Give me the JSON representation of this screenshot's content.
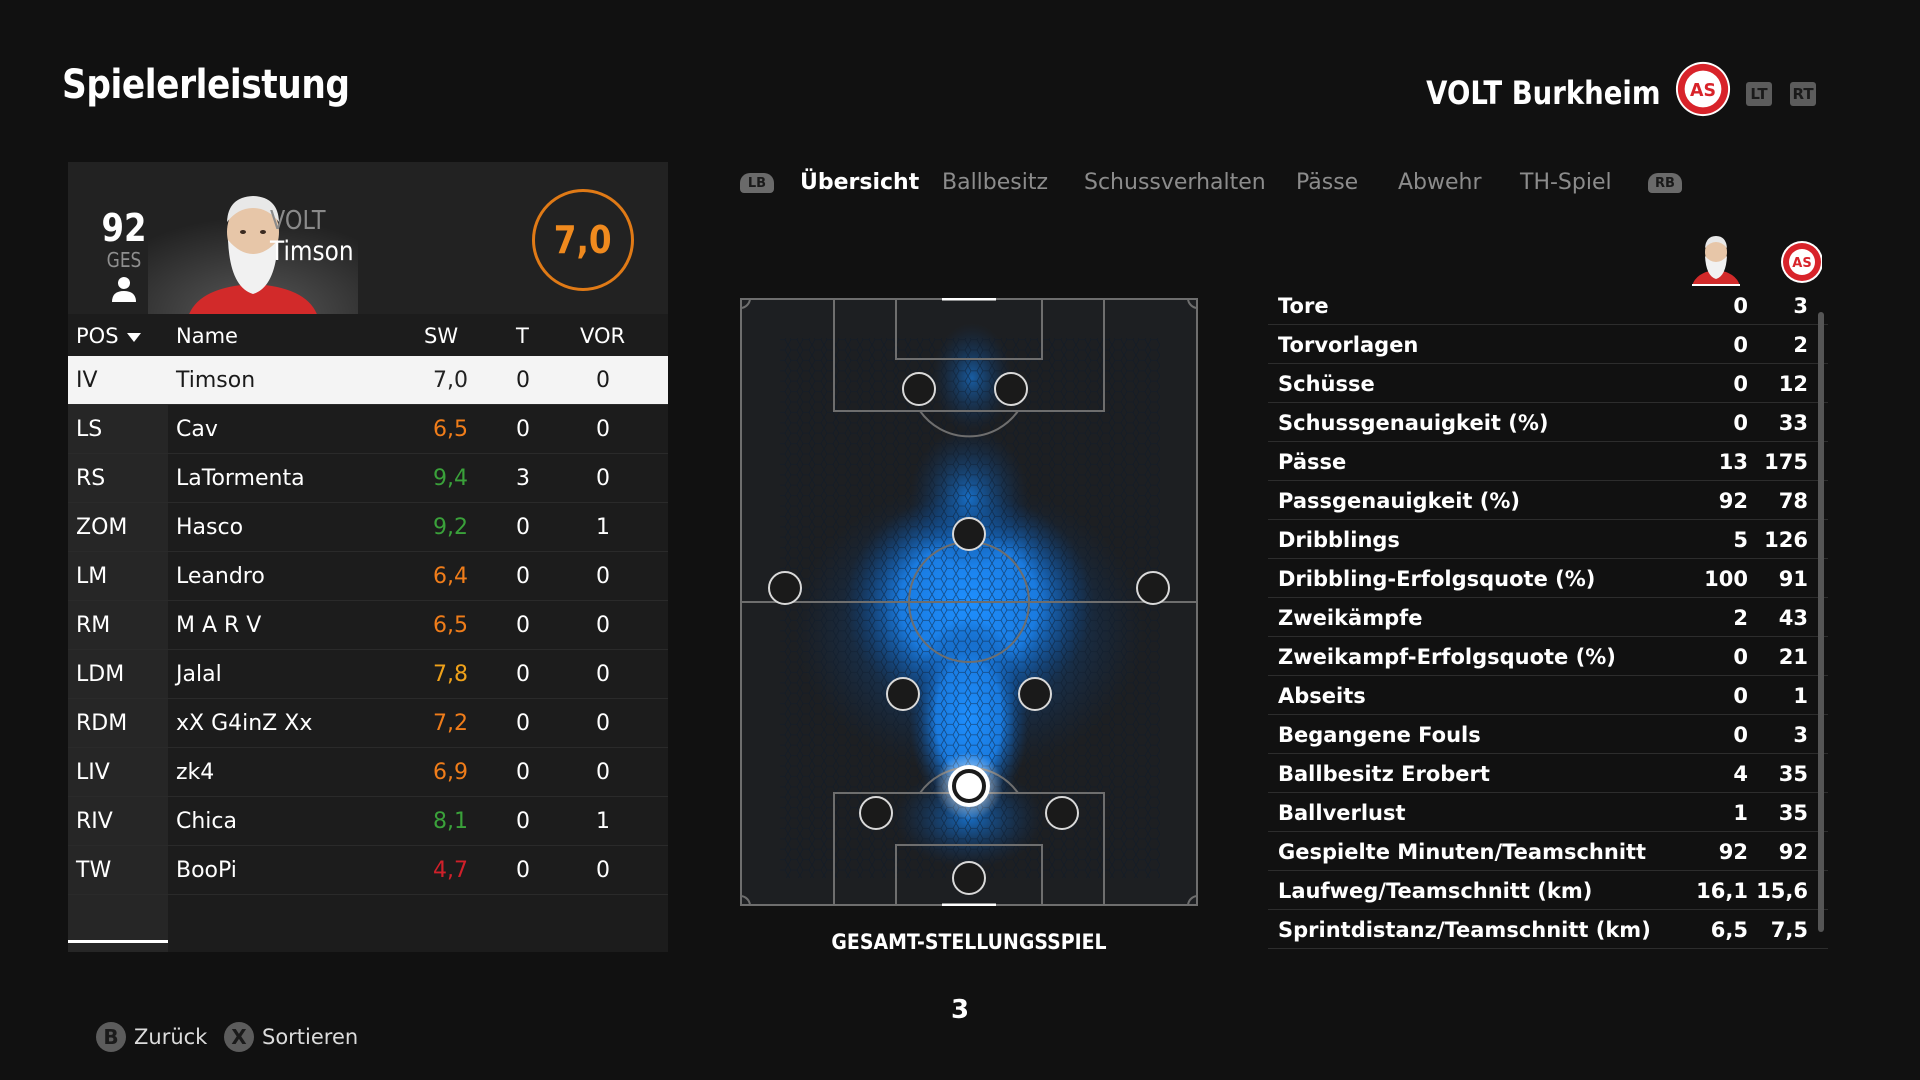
{
  "header": {
    "title": "Spielerleistung",
    "team_name": "VOLT Burkheim",
    "lt_label": "LT",
    "rt_label": "RT"
  },
  "player": {
    "overall": "92",
    "overall_label": "GES",
    "club_short": "VOLT",
    "name": "Timson",
    "match_rating": "7,0"
  },
  "table": {
    "headers": {
      "pos": "POS",
      "name": "Name",
      "sw": "SW",
      "t": "T",
      "vor": "VOR"
    },
    "rows": [
      {
        "pos": "IV",
        "name": "Timson",
        "sw": "7,0",
        "t": "0",
        "vor": "0",
        "sw_color": "#222222"
      },
      {
        "pos": "LS",
        "name": "Cav",
        "sw": "6,5",
        "t": "0",
        "vor": "0",
        "sw_color": "#f07d1a"
      },
      {
        "pos": "RS",
        "name": "LaTormenta",
        "sw": "9,4",
        "t": "3",
        "vor": "0",
        "sw_color": "#3aa13a"
      },
      {
        "pos": "ZOM",
        "name": "Hasco",
        "sw": "9,2",
        "t": "0",
        "vor": "1",
        "sw_color": "#3aa13a"
      },
      {
        "pos": "LM",
        "name": "Leandro",
        "sw": "6,4",
        "t": "0",
        "vor": "0",
        "sw_color": "#f07d1a"
      },
      {
        "pos": "RM",
        "name": "M A R V",
        "sw": "6,5",
        "t": "0",
        "vor": "0",
        "sw_color": "#f07d1a"
      },
      {
        "pos": "LDM",
        "name": "Jalal",
        "sw": "7,8",
        "t": "0",
        "vor": "0",
        "sw_color": "#f0a21a"
      },
      {
        "pos": "RDM",
        "name": "xX G4inZ Xx",
        "sw": "7,2",
        "t": "0",
        "vor": "0",
        "sw_color": "#f07d1a"
      },
      {
        "pos": "LIV",
        "name": "zk4",
        "sw": "6,9",
        "t": "0",
        "vor": "0",
        "sw_color": "#f07d1a"
      },
      {
        "pos": "RIV",
        "name": "Chica",
        "sw": "8,1",
        "t": "0",
        "vor": "1",
        "sw_color": "#3aa13a"
      },
      {
        "pos": "TW",
        "name": "BooPi",
        "sw": "4,7",
        "t": "0",
        "vor": "0",
        "sw_color": "#d0202a"
      }
    ]
  },
  "tabs": {
    "lb_label": "LB",
    "rb_label": "RB",
    "items": [
      "Übersicht",
      "Ballbesitz",
      "Schussverhalten",
      "Pässe",
      "Abwehr",
      "TH-Spiel"
    ],
    "active": "Übersicht"
  },
  "pitch": {
    "caption": "GESAMT-STELLUNGSSPIEL"
  },
  "pagination": {
    "page": "3"
  },
  "stats": [
    {
      "label": "Tore",
      "player": "0",
      "team": "3"
    },
    {
      "label": "Torvorlagen",
      "player": "0",
      "team": "2"
    },
    {
      "label": "Schüsse",
      "player": "0",
      "team": "12"
    },
    {
      "label": "Schussgenauigkeit (%)",
      "player": "0",
      "team": "33"
    },
    {
      "label": "Pässe",
      "player": "13",
      "team": "175"
    },
    {
      "label": "Passgenauigkeit (%)",
      "player": "92",
      "team": "78"
    },
    {
      "label": "Dribblings",
      "player": "5",
      "team": "126"
    },
    {
      "label": "Dribbling-Erfolgsquote (%)",
      "player": "100",
      "team": "91"
    },
    {
      "label": "Zweikämpfe",
      "player": "2",
      "team": "43"
    },
    {
      "label": "Zweikampf-Erfolgsquote (%)",
      "player": "0",
      "team": "21"
    },
    {
      "label": "Abseits",
      "player": "0",
      "team": "1"
    },
    {
      "label": "Begangene Fouls",
      "player": "0",
      "team": "3"
    },
    {
      "label": "Ballbesitz Erobert",
      "player": "4",
      "team": "35"
    },
    {
      "label": "Ballverlust",
      "player": "1",
      "team": "35"
    },
    {
      "label": "Gespielte Minuten/Teamschnitt",
      "player": "92",
      "team": "92"
    },
    {
      "label": "Laufweg/Teamschnitt (km)",
      "player": "16,1",
      "team": "15,6"
    },
    {
      "label": "Sprintdistanz/Teamschnitt (km)",
      "player": "6,5",
      "team": "7,5"
    }
  ],
  "hints": {
    "back_button": "B",
    "back_label": "Zurück",
    "sort_button": "X",
    "sort_label": "Sortieren"
  },
  "colors": {
    "rating_ring": "#e07a16",
    "heatmap": "#1e90ff",
    "club_red": "#d8232a"
  }
}
